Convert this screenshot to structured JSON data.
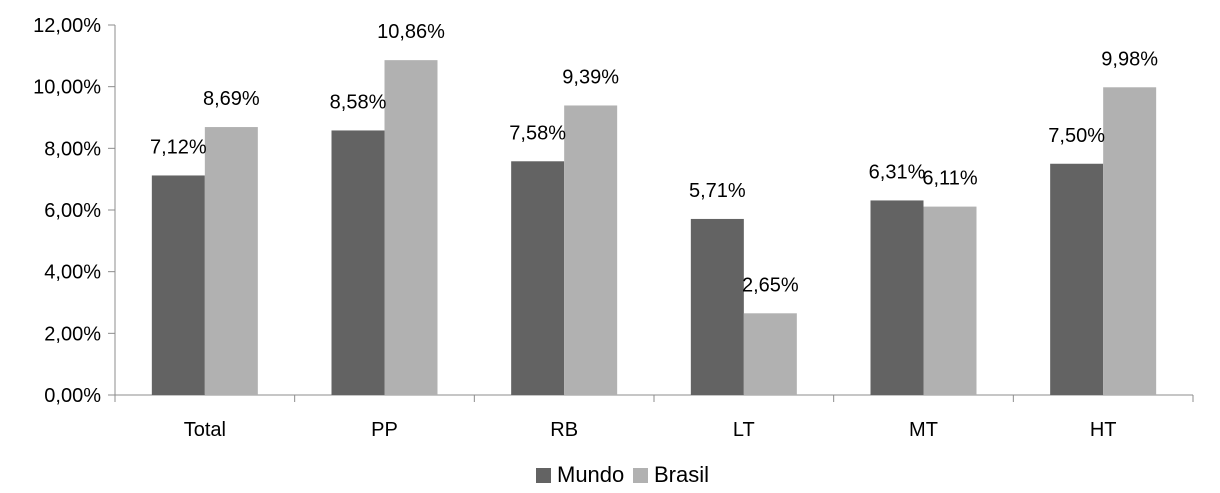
{
  "chart_data": {
    "type": "bar",
    "categories": [
      "Total",
      "PP",
      "RB",
      "LT",
      "MT",
      "HT"
    ],
    "series": [
      {
        "name": "Mundo",
        "color": "#636363",
        "values": [
          7.12,
          8.58,
          7.58,
          5.71,
          6.31,
          7.5
        ],
        "labels": [
          "7,12%",
          "8,58%",
          "7,58%",
          "5,71%",
          "6,31%",
          "7,50%"
        ]
      },
      {
        "name": "Brasil",
        "color": "#b1b1b1",
        "values": [
          8.69,
          10.86,
          9.39,
          2.65,
          6.11,
          9.98
        ],
        "labels": [
          "8,69%",
          "10,86%",
          "9,39%",
          "2,65%",
          "6,11%",
          "9,98%"
        ]
      }
    ],
    "ylim": [
      0,
      12
    ],
    "yticks": [
      0,
      2,
      4,
      6,
      8,
      10,
      12
    ],
    "ytick_labels": [
      "0,00%",
      "2,00%",
      "4,00%",
      "6,00%",
      "8,00%",
      "10,00%",
      "12,00%"
    ],
    "grid": false,
    "legend_position": "bottom-center",
    "axis_color": "#8c8c8c"
  }
}
